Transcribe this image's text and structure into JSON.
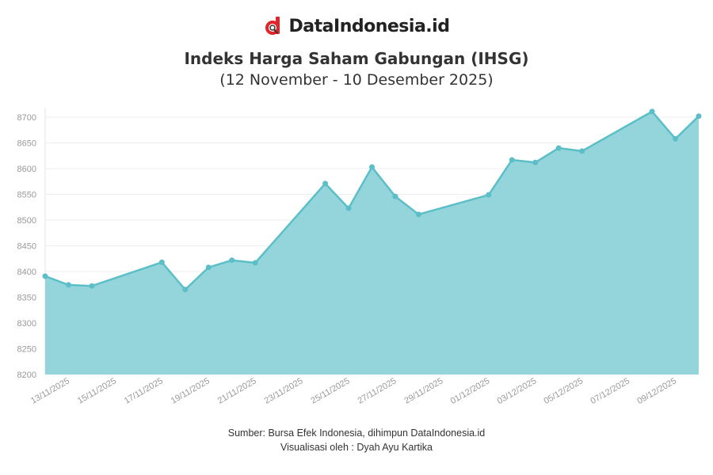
{
  "brand": {
    "name": "DataIndonesia.id",
    "accent": "#e0262b"
  },
  "chart_data": {
    "type": "area",
    "title": "Indeks Harga Saham Gabungan (IHSG)",
    "subtitle": "(12 November - 10 Desember 2025)",
    "xlabel": "",
    "ylabel": "",
    "ylim": [
      8200,
      8720
    ],
    "yticks": [
      8200,
      8250,
      8300,
      8350,
      8400,
      8450,
      8500,
      8550,
      8600,
      8650,
      8700
    ],
    "xrange": [
      "2025-11-12",
      "2025-12-10"
    ],
    "xticks": [
      "13/11/2025",
      "15/11/2025",
      "17/11/2025",
      "19/11/2025",
      "21/11/2025",
      "23/11/2025",
      "25/11/2025",
      "27/11/2025",
      "29/11/2025",
      "01/12/2025",
      "03/12/2025",
      "05/12/2025",
      "07/12/2025",
      "09/12/2025"
    ],
    "grid": true,
    "color_line": "#5cbfc7",
    "color_fill": "#94d5dc",
    "points": [
      {
        "date": "2025-11-12",
        "value": 8391
      },
      {
        "date": "2025-11-13",
        "value": 8374
      },
      {
        "date": "2025-11-14",
        "value": 8372
      },
      {
        "date": "2025-11-17",
        "value": 8418
      },
      {
        "date": "2025-11-18",
        "value": 8365
      },
      {
        "date": "2025-11-19",
        "value": 8408
      },
      {
        "date": "2025-11-20",
        "value": 8422
      },
      {
        "date": "2025-11-21",
        "value": 8417
      },
      {
        "date": "2025-11-24",
        "value": 8571
      },
      {
        "date": "2025-11-25",
        "value": 8523
      },
      {
        "date": "2025-11-26",
        "value": 8603
      },
      {
        "date": "2025-11-27",
        "value": 8546
      },
      {
        "date": "2025-11-28",
        "value": 8511
      },
      {
        "date": "2025-12-01",
        "value": 8549
      },
      {
        "date": "2025-12-02",
        "value": 8617
      },
      {
        "date": "2025-12-03",
        "value": 8612
      },
      {
        "date": "2025-12-04",
        "value": 8640
      },
      {
        "date": "2025-12-05",
        "value": 8634
      },
      {
        "date": "2025-12-08",
        "value": 8711
      },
      {
        "date": "2025-12-09",
        "value": 8658
      },
      {
        "date": "2025-12-10",
        "value": 8702
      }
    ]
  },
  "footer": {
    "source": "Sumber: Bursa Efek Indonesia, dihimpun DataIndonesia.id",
    "credit": "Visualisasi oleh : Dyah Ayu Kartika"
  }
}
